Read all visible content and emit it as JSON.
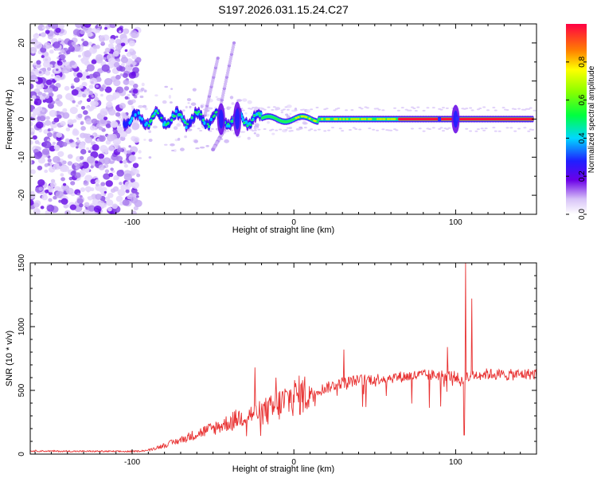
{
  "title": "S197.2026.031.15.24.C27",
  "chart_data": [
    {
      "type": "heatmap",
      "xlabel": "Height of straight line (km)",
      "ylabel": "Frequency (Hz)",
      "xlim": [
        -163,
        150
      ],
      "ylim": [
        -25,
        25
      ],
      "x_ticks": [
        -100,
        0,
        100
      ],
      "y_ticks": [
        -20,
        -10,
        0,
        10,
        20
      ],
      "colorbar": {
        "label": "Normalized spectral amplitude",
        "range": [
          0,
          1
        ],
        "ticks": [
          "0.0",
          "0.2",
          "0.4",
          "0.6",
          "0.8"
        ]
      },
      "features": {
        "noise_region_x": [
          -163,
          -100
        ],
        "ridge_frequency_hz": 0,
        "strong_ridge_start_x": 65,
        "bursts_x": [
          -45,
          -35,
          100
        ]
      }
    },
    {
      "type": "line",
      "xlabel": "Height of straight line (km)",
      "ylabel": "SNR (10 * v/v)",
      "xlim": [
        -163,
        150
      ],
      "ylim": [
        0,
        1500
      ],
      "x_ticks": [
        -100,
        0,
        100
      ],
      "y_ticks": [
        0,
        500,
        1000,
        1500
      ],
      "series": [
        {
          "name": "SNR",
          "color": "#e83232",
          "x": [
            -163,
            -140,
            -120,
            -100,
            -90,
            -80,
            -70,
            -60,
            -50,
            -40,
            -35,
            -30,
            -25,
            -20,
            -15,
            -10,
            -5,
            0,
            10,
            20,
            30,
            40,
            50,
            60,
            70,
            80,
            90,
            100,
            104,
            106,
            108,
            110,
            120,
            130,
            140,
            150
          ],
          "values": [
            25,
            22,
            22,
            20,
            30,
            70,
            110,
            160,
            200,
            250,
            280,
            300,
            320,
            330,
            340,
            380,
            420,
            450,
            480,
            520,
            560,
            580,
            590,
            600,
            610,
            620,
            620,
            610,
            560,
            620,
            600,
            620,
            630,
            620,
            625,
            630
          ]
        }
      ],
      "spikes": [
        {
          "x": -24,
          "value": 680
        },
        {
          "x": -11,
          "value": 600
        },
        {
          "x": 31,
          "value": 820
        },
        {
          "x": 95,
          "value": 840
        },
        {
          "x": 106,
          "value": 1500
        },
        {
          "x": 110,
          "value": 1220
        }
      ]
    }
  ]
}
